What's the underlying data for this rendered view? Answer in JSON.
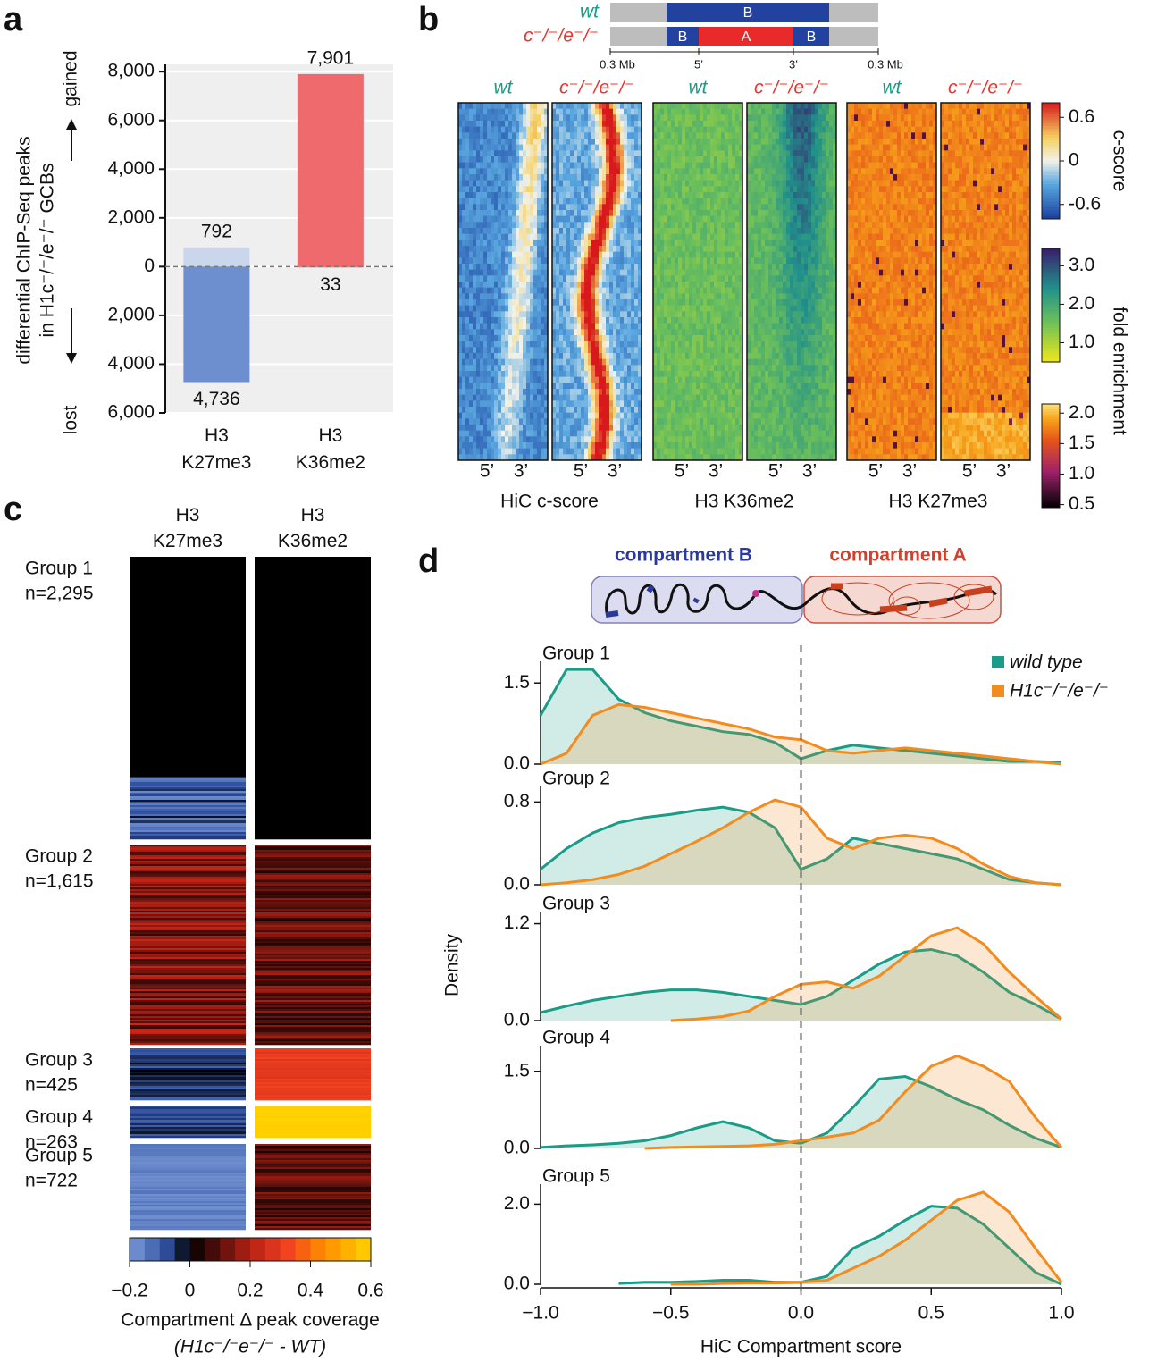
{
  "panel_labels": [
    "a",
    "b",
    "c",
    "d"
  ],
  "chart_data": [
    {
      "type": "bar",
      "ylabel": [
        "differential ChIP-Seq peaks",
        "in H1c⁻/⁻/e⁻/⁻ GCBs"
      ],
      "annotations": [
        "gained",
        "lost"
      ],
      "categories": [
        "H3 K27me3",
        "H3 K36me2"
      ],
      "series": [
        {
          "colors": [
            "#c9d6ec",
            "#ee6a6d"
          ],
          "values": [
            792,
            7901
          ],
          "value_labels": [
            "792",
            "7,901"
          ]
        },
        {
          "colors": [
            "#6e8fcf",
            "#ee6a6d"
          ],
          "values": [
            -4736,
            -33
          ],
          "value_labels": [
            "4,736",
            "33"
          ]
        }
      ],
      "ylim": [
        -6000,
        8300
      ],
      "yticks": [
        {
          "value": -6000,
          "label": "6,000"
        },
        {
          "value": -4000,
          "label": "4,000"
        },
        {
          "value": -2000,
          "label": "2,000"
        },
        0,
        {
          "value": 2000,
          "label": "2,000"
        },
        {
          "value": 4000,
          "label": "4,000"
        },
        {
          "value": 6000,
          "label": "6,000"
        },
        {
          "value": 8000,
          "label": "8,000"
        }
      ],
      "grid": true
    },
    {
      "type": "line",
      "title": "Group 1",
      "x": [
        -1,
        -0.9,
        -0.8,
        -0.7,
        -0.6,
        -0.5,
        -0.4,
        -0.3,
        -0.2,
        -0.1,
        0,
        0.1,
        0.2,
        0.3,
        0.4,
        0.5,
        0.6,
        0.7,
        0.8,
        0.9,
        1
      ],
      "series": [
        {
          "name": "wild type",
          "color": "#1a9c88",
          "values": [
            0.9,
            1.75,
            1.75,
            1.2,
            0.95,
            0.8,
            0.7,
            0.6,
            0.55,
            0.4,
            0.1,
            0.25,
            0.35,
            0.3,
            0.25,
            0.2,
            0.15,
            0.1,
            0.05,
            0.05,
            0.03
          ]
        },
        {
          "name": "H1c⁻/⁻/e⁻/⁻",
          "color": "#f28c1f",
          "values": [
            0,
            0.2,
            0.9,
            1.1,
            1.05,
            0.95,
            0.85,
            0.75,
            0.65,
            0.5,
            0.45,
            0.25,
            0.2,
            0.25,
            0.3,
            0.25,
            0.2,
            0.15,
            0.1,
            0.05,
            0
          ]
        }
      ],
      "xlim": [
        -1,
        1
      ],
      "ylim": [
        0,
        1.9
      ],
      "yticks": [
        {
          "value": 0,
          "label": "0.0"
        },
        1.5
      ],
      "legend": "upper right"
    },
    {
      "type": "line",
      "title": "Group 2",
      "x": [
        -1,
        -0.9,
        -0.8,
        -0.7,
        -0.6,
        -0.5,
        -0.4,
        -0.3,
        -0.2,
        -0.1,
        0,
        0.1,
        0.2,
        0.3,
        0.4,
        0.5,
        0.6,
        0.7,
        0.8,
        0.9,
        1
      ],
      "series": [
        {
          "color": "#1a9c88",
          "values": [
            0.15,
            0.35,
            0.5,
            0.6,
            0.65,
            0.68,
            0.72,
            0.75,
            0.7,
            0.55,
            0.15,
            0.25,
            0.45,
            0.4,
            0.35,
            0.3,
            0.25,
            0.15,
            0.05,
            0.02,
            0
          ]
        },
        {
          "color": "#f28c1f",
          "values": [
            0,
            0.02,
            0.05,
            0.1,
            0.18,
            0.3,
            0.42,
            0.55,
            0.7,
            0.82,
            0.75,
            0.45,
            0.35,
            0.45,
            0.48,
            0.45,
            0.35,
            0.2,
            0.08,
            0.02,
            0
          ]
        }
      ],
      "xlim": [
        -1,
        1
      ],
      "ylim": [
        0,
        0.95
      ],
      "yticks": [
        {
          "value": 0,
          "label": "0.0"
        },
        0.8
      ]
    },
    {
      "type": "line",
      "title": "Group 3",
      "ylabel": "Density",
      "x": [
        -1,
        -0.9,
        -0.8,
        -0.7,
        -0.6,
        -0.5,
        -0.4,
        -0.3,
        -0.2,
        -0.1,
        0,
        0.1,
        0.2,
        0.3,
        0.4,
        0.5,
        0.6,
        0.7,
        0.8,
        0.9,
        1
      ],
      "series": [
        {
          "color": "#1a9c88",
          "values": [
            0.1,
            0.18,
            0.25,
            0.3,
            0.35,
            0.38,
            0.38,
            0.35,
            0.3,
            0.25,
            0.2,
            0.3,
            0.5,
            0.7,
            0.85,
            0.88,
            0.8,
            0.6,
            0.35,
            0.2,
            0.02
          ]
        },
        {
          "color": "#f28c1f",
          "values": [
            null,
            null,
            null,
            null,
            null,
            0,
            0.02,
            0.05,
            0.12,
            0.3,
            0.45,
            0.48,
            0.4,
            0.55,
            0.8,
            1.05,
            1.15,
            0.95,
            0.6,
            0.3,
            0.02
          ]
        }
      ],
      "xlim": [
        -1,
        1
      ],
      "ylim": [
        0,
        1.35
      ],
      "yticks": [
        {
          "value": 0,
          "label": "0.0"
        },
        1.2
      ]
    },
    {
      "type": "line",
      "title": "Group 4",
      "x": [
        -1,
        -0.9,
        -0.8,
        -0.7,
        -0.6,
        -0.5,
        -0.4,
        -0.3,
        -0.2,
        -0.1,
        0,
        0.1,
        0.2,
        0.3,
        0.4,
        0.5,
        0.6,
        0.7,
        0.8,
        0.9,
        1
      ],
      "series": [
        {
          "color": "#1a9c88",
          "values": [
            0.02,
            0.05,
            0.07,
            0.1,
            0.15,
            0.25,
            0.4,
            0.52,
            0.4,
            0.15,
            0.1,
            0.3,
            0.8,
            1.35,
            1.4,
            1.2,
            0.95,
            0.75,
            0.45,
            0.2,
            0.02
          ]
        },
        {
          "color": "#f28c1f",
          "values": [
            null,
            null,
            null,
            null,
            0,
            0.02,
            0.03,
            0.04,
            0.05,
            0.08,
            0.15,
            0.22,
            0.3,
            0.55,
            1.1,
            1.6,
            1.8,
            1.6,
            1.3,
            0.6,
            0.02
          ]
        }
      ],
      "xlim": [
        -1,
        1
      ],
      "ylim": [
        0,
        2.0
      ],
      "yticks": [
        {
          "value": 0,
          "label": "0.0"
        },
        1.5
      ]
    },
    {
      "type": "line",
      "title": "Group 5",
      "x": [
        -1,
        -0.9,
        -0.8,
        -0.7,
        -0.6,
        -0.5,
        -0.4,
        -0.3,
        -0.2,
        -0.1,
        0,
        0.1,
        0.2,
        0.3,
        0.4,
        0.5,
        0.6,
        0.7,
        0.8,
        0.9,
        1
      ],
      "series": [
        {
          "color": "#1a9c88",
          "values": [
            null,
            null,
            null,
            0.02,
            0.05,
            0.05,
            0.07,
            0.1,
            0.1,
            0.05,
            0.05,
            0.2,
            0.9,
            1.2,
            1.6,
            1.95,
            1.9,
            1.5,
            0.9,
            0.3,
            0
          ]
        },
        {
          "color": "#f28c1f",
          "values": [
            null,
            null,
            null,
            null,
            null,
            0,
            0,
            0.02,
            0.03,
            0.03,
            0.05,
            0.1,
            0.4,
            0.7,
            1.1,
            1.6,
            2.1,
            2.3,
            1.8,
            0.9,
            0.05
          ]
        }
      ],
      "xlim": [
        -1,
        1
      ],
      "ylim": [
        0,
        2.5
      ],
      "yticks": [
        {
          "value": 0,
          "label": "0.0"
        },
        {
          "value": 2,
          "label": "2.0"
        }
      ],
      "xticks": [
        {
          "value": -1,
          "label": "−1.0"
        },
        {
          "value": -0.5,
          "label": "−0.5"
        },
        {
          "value": 0,
          "label": "0.0"
        },
        {
          "value": 0.5,
          "label": "0.5"
        },
        {
          "value": 1,
          "label": "1.0"
        }
      ],
      "xlabel": "HiC Compartment score"
    }
  ],
  "panel_b": {
    "schematic": {
      "rows": [
        "wt",
        "c⁻/⁻/e⁻/⁻"
      ],
      "wt_segments": [
        "B"
      ],
      "ko_segments": [
        "B",
        "A",
        "B"
      ],
      "scale": [
        "0.3 Mb",
        "5’",
        "3’",
        "0.3 Mb"
      ]
    },
    "heatmaps": [
      {
        "title": "HiC c-score",
        "columns": [
          "wt",
          "c⁻/⁻/e⁻/⁻"
        ],
        "ends": [
          "5’",
          "3’"
        ]
      },
      {
        "title": "H3 K36me2",
        "columns": [
          "wt",
          "c⁻/⁻/e⁻/⁻"
        ],
        "ends": [
          "5’",
          "3’"
        ]
      },
      {
        "title": "H3 K27me3",
        "columns": [
          "wt",
          "c⁻/⁻/e⁻/⁻"
        ],
        "ends": [
          "5’",
          "3’"
        ]
      }
    ],
    "colorbars": [
      {
        "label": "c-score",
        "lim": [
          -0.8,
          0.8
        ],
        "ticks": [
          0.6,
          0,
          -0.6
        ]
      },
      {
        "label": "fold enrichment",
        "lim": [
          0.5,
          3.45
        ],
        "ticks": [
          {
            "value": 3,
            "label": "3.0"
          },
          {
            "value": 2,
            "label": "2.0"
          },
          {
            "value": 1,
            "label": "1.0"
          }
        ]
      },
      {
        "lim": [
          0.45,
          2.15
        ],
        "ticks": [
          {
            "value": 2,
            "label": "2.0"
          },
          1.5,
          {
            "value": 1,
            "label": "1.0"
          },
          0.5
        ]
      }
    ]
  },
  "panel_c": {
    "columns": [
      "H3 K27me3",
      "H3 K36me2"
    ],
    "groups": [
      {
        "name": "Group 1",
        "n": "n=2,295"
      },
      {
        "name": "Group 2",
        "n": "n=1,615"
      },
      {
        "name": "Group 3",
        "n": "n=425"
      },
      {
        "name": "Group 4",
        "n": "n=263"
      },
      {
        "name": "Group 5",
        "n": "n=722"
      }
    ],
    "colorbar": {
      "lim": [
        -0.2,
        0.6
      ],
      "ticks": [
        {
          "value": -0.2,
          "label": "−0.2"
        },
        0,
        0.2,
        0.4,
        0.6
      ],
      "label": "Compartment Δ peak coverage",
      "sublabel": "(H1c⁻/⁻e⁻/⁻ - WT)"
    }
  },
  "panel_d": {
    "schematic_labels": [
      "compartment B",
      "compartment A"
    ]
  }
}
